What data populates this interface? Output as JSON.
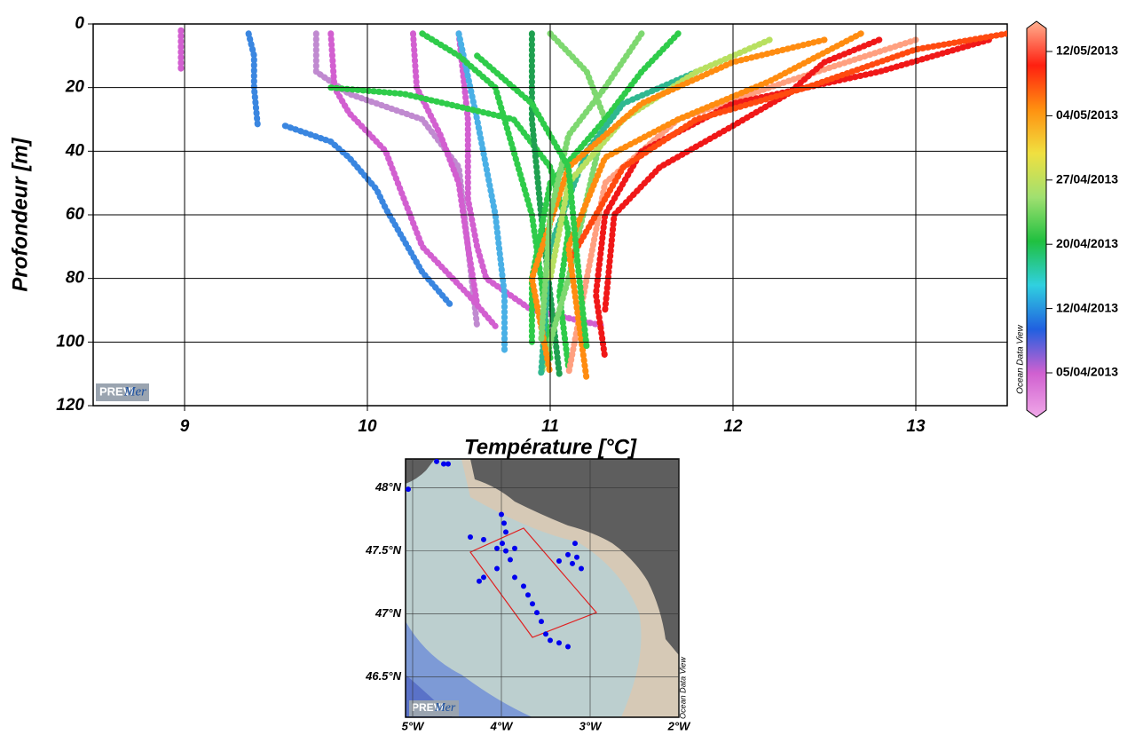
{
  "chart_data": [
    {
      "type": "line",
      "x_label": "Température [°C]",
      "y_label": "Profondeur [m]",
      "xlim": [
        8.5,
        13.5
      ],
      "xticks": [
        9,
        10,
        11,
        12,
        13
      ],
      "ylim": [
        0,
        120
      ],
      "yticks": [
        0,
        20,
        40,
        60,
        80,
        100,
        120
      ],
      "y_inverted": true,
      "grid": true,
      "watermark": "Ocean Data View",
      "brand": {
        "prefix": "PREVI",
        "suffix": "Mer"
      },
      "colorbar": {
        "labels": [
          "12/05/2013",
          "04/05/2013",
          "27/04/2013",
          "20/04/2013",
          "12/04/2013",
          "05/04/2013"
        ],
        "colors": [
          "#ffb090",
          "#ff2010",
          "#ff9010",
          "#f0e040",
          "#a0e070",
          "#20c040",
          "#30d0e0",
          "#2060e0",
          "#d060d0",
          "#f0a8e8"
        ]
      },
      "series": [
        {
          "color": "#d25fd0",
          "x": [
            8.98,
            8.98,
            8.98
          ],
          "values": [
            2,
            8,
            15
          ]
        },
        {
          "color": "#3a86e0",
          "x": [
            9.35,
            9.38,
            9.38,
            9.4
          ],
          "values": [
            3,
            10,
            20,
            32
          ]
        },
        {
          "color": "#3a86e0",
          "x": [
            9.55,
            9.8,
            9.9,
            10.05,
            10.1,
            10.2,
            10.3,
            10.45
          ],
          "values": [
            32,
            37,
            42,
            52,
            58,
            68,
            78,
            88
          ]
        },
        {
          "color": "#c08ad0",
          "x": [
            9.72,
            9.72,
            9.9,
            10.3,
            10.5,
            10.55,
            10.6
          ],
          "values": [
            3,
            15,
            22,
            30,
            45,
            70,
            95
          ]
        },
        {
          "color": "#d25fd0",
          "x": [
            9.8,
            9.82,
            9.9,
            10.1,
            10.2,
            10.3,
            10.55,
            10.7
          ],
          "values": [
            3,
            20,
            28,
            40,
            55,
            70,
            85,
            95
          ]
        },
        {
          "color": "#d25fd0",
          "x": [
            10.25,
            10.27,
            10.4,
            10.5,
            10.55,
            10.6
          ],
          "values": [
            3,
            20,
            35,
            50,
            70,
            88
          ]
        },
        {
          "color": "#d25fd0",
          "x": [
            10.5,
            10.55,
            10.55,
            10.6,
            10.65,
            10.9,
            11.3
          ],
          "values": [
            3,
            30,
            55,
            70,
            80,
            90,
            95
          ]
        },
        {
          "color": "#4ab0e6",
          "x": [
            10.5,
            10.6,
            10.7,
            10.75,
            10.75
          ],
          "values": [
            3,
            30,
            60,
            85,
            103
          ]
        },
        {
          "color": "#2fcc4a",
          "x": [
            10.3,
            10.5,
            10.7,
            10.8,
            10.9,
            10.95,
            11.0
          ],
          "values": [
            3,
            10,
            20,
            40,
            60,
            80,
            105
          ]
        },
        {
          "color": "#2fcc4a",
          "x": [
            9.8,
            10.2,
            10.8,
            11.0,
            11.1,
            11.05,
            11.1
          ],
          "values": [
            20,
            22,
            30,
            45,
            65,
            85,
            108
          ]
        },
        {
          "color": "#1fa050",
          "x": [
            10.9,
            10.9,
            10.95,
            11.0,
            11.05
          ],
          "values": [
            3,
            30,
            60,
            85,
            110
          ]
        },
        {
          "color": "#7ed870",
          "x": [
            11.0,
            11.2,
            11.3,
            11.2,
            11.1,
            10.95
          ],
          "values": [
            3,
            15,
            30,
            55,
            80,
            110
          ]
        },
        {
          "color": "#2fcc4a",
          "x": [
            11.7,
            11.5,
            11.3,
            11.0,
            10.9,
            10.9
          ],
          "values": [
            3,
            15,
            30,
            50,
            80,
            100
          ]
        },
        {
          "color": "#30b890",
          "x": [
            11.8,
            11.4,
            11.2,
            11.0,
            10.95
          ],
          "values": [
            15,
            25,
            40,
            70,
            110
          ]
        },
        {
          "color": "#b8e060",
          "x": [
            12.2,
            11.8,
            11.4,
            11.1,
            11.0
          ],
          "values": [
            5,
            15,
            30,
            50,
            80
          ]
        },
        {
          "color": "#ff8c10",
          "x": [
            12.5,
            12.0,
            11.5,
            11.1,
            10.9,
            11.0
          ],
          "values": [
            5,
            12,
            25,
            45,
            80,
            110
          ]
        },
        {
          "color": "#ffa080",
          "x": [
            13.0,
            12.3,
            11.7,
            11.3,
            11.2,
            11.1
          ],
          "values": [
            5,
            18,
            30,
            50,
            80,
            110
          ]
        },
        {
          "color": "#f01818",
          "x": [
            13.4,
            12.8,
            12.0,
            11.5,
            11.3,
            11.25,
            11.3
          ],
          "values": [
            5,
            15,
            25,
            40,
            60,
            85,
            105
          ]
        },
        {
          "color": "#f01818",
          "x": [
            12.8,
            12.5,
            12.3,
            12.0,
            11.6,
            11.35,
            11.3
          ],
          "values": [
            5,
            12,
            22,
            32,
            45,
            60,
            90
          ]
        },
        {
          "color": "#ff4a10",
          "x": [
            13.5,
            13.0,
            12.4,
            11.8,
            11.4,
            11.1
          ],
          "values": [
            3,
            8,
            20,
            30,
            45,
            75
          ]
        },
        {
          "color": "#7ed870",
          "x": [
            11.5,
            11.3,
            11.1,
            11.0,
            10.95
          ],
          "values": [
            3,
            20,
            35,
            60,
            100
          ]
        },
        {
          "color": "#ff8c10",
          "x": [
            12.7,
            12.2,
            11.7,
            11.3,
            11.1,
            11.2
          ],
          "values": [
            3,
            18,
            30,
            42,
            70,
            112
          ]
        },
        {
          "color": "#2fcc4a",
          "x": [
            10.6,
            10.9,
            11.1,
            11.15,
            11.2
          ],
          "values": [
            10,
            25,
            45,
            75,
            102
          ]
        }
      ]
    },
    {
      "type": "map",
      "xlim": [
        -5.08,
        -2.0
      ],
      "xticks": [
        {
          "value": -5,
          "label": "5°W"
        },
        {
          "value": -4,
          "label": "4°W"
        },
        {
          "value": -3,
          "label": "3°W"
        },
        {
          "value": -2,
          "label": "2°W"
        }
      ],
      "ylim": [
        46.18,
        48.23
      ],
      "yticks": [
        {
          "value": 46.5,
          "label": "46.5°N"
        },
        {
          "value": 47,
          "label": "47°N"
        },
        {
          "value": 47.5,
          "label": "47.5°N"
        },
        {
          "value": 48,
          "label": "48°N"
        }
      ],
      "grid": true,
      "watermark": "Ocean Data View",
      "brand": {
        "prefix": "PREVI",
        "suffix": "Mer"
      },
      "series": [
        {
          "color": "#0000ee",
          "x": [
            -4.0,
            -3.97,
            -3.95,
            -3.99,
            -4.05,
            -3.95,
            -3.85,
            -4.2,
            -4.35,
            -3.9,
            -4.05,
            -4.2,
            -4.25,
            -3.85,
            -3.75,
            -3.7,
            -3.65,
            -3.6,
            -3.55,
            -3.5,
            -3.45,
            -3.35,
            -3.25,
            -3.25,
            -3.2,
            -3.15,
            -3.1,
            -3.17,
            -3.35,
            -4.65,
            -4.6,
            -4.73,
            -5.05
          ],
          "values": [
            47.79,
            47.72,
            47.65,
            47.56,
            47.52,
            47.5,
            47.52,
            47.59,
            47.61,
            47.43,
            47.36,
            47.29,
            47.26,
            47.29,
            47.22,
            47.15,
            47.08,
            47.01,
            46.94,
            46.84,
            46.79,
            46.77,
            46.74,
            47.47,
            47.4,
            47.45,
            47.36,
            47.56,
            47.42,
            48.19,
            48.19,
            48.21,
            47.99
          ]
        }
      ]
    }
  ]
}
